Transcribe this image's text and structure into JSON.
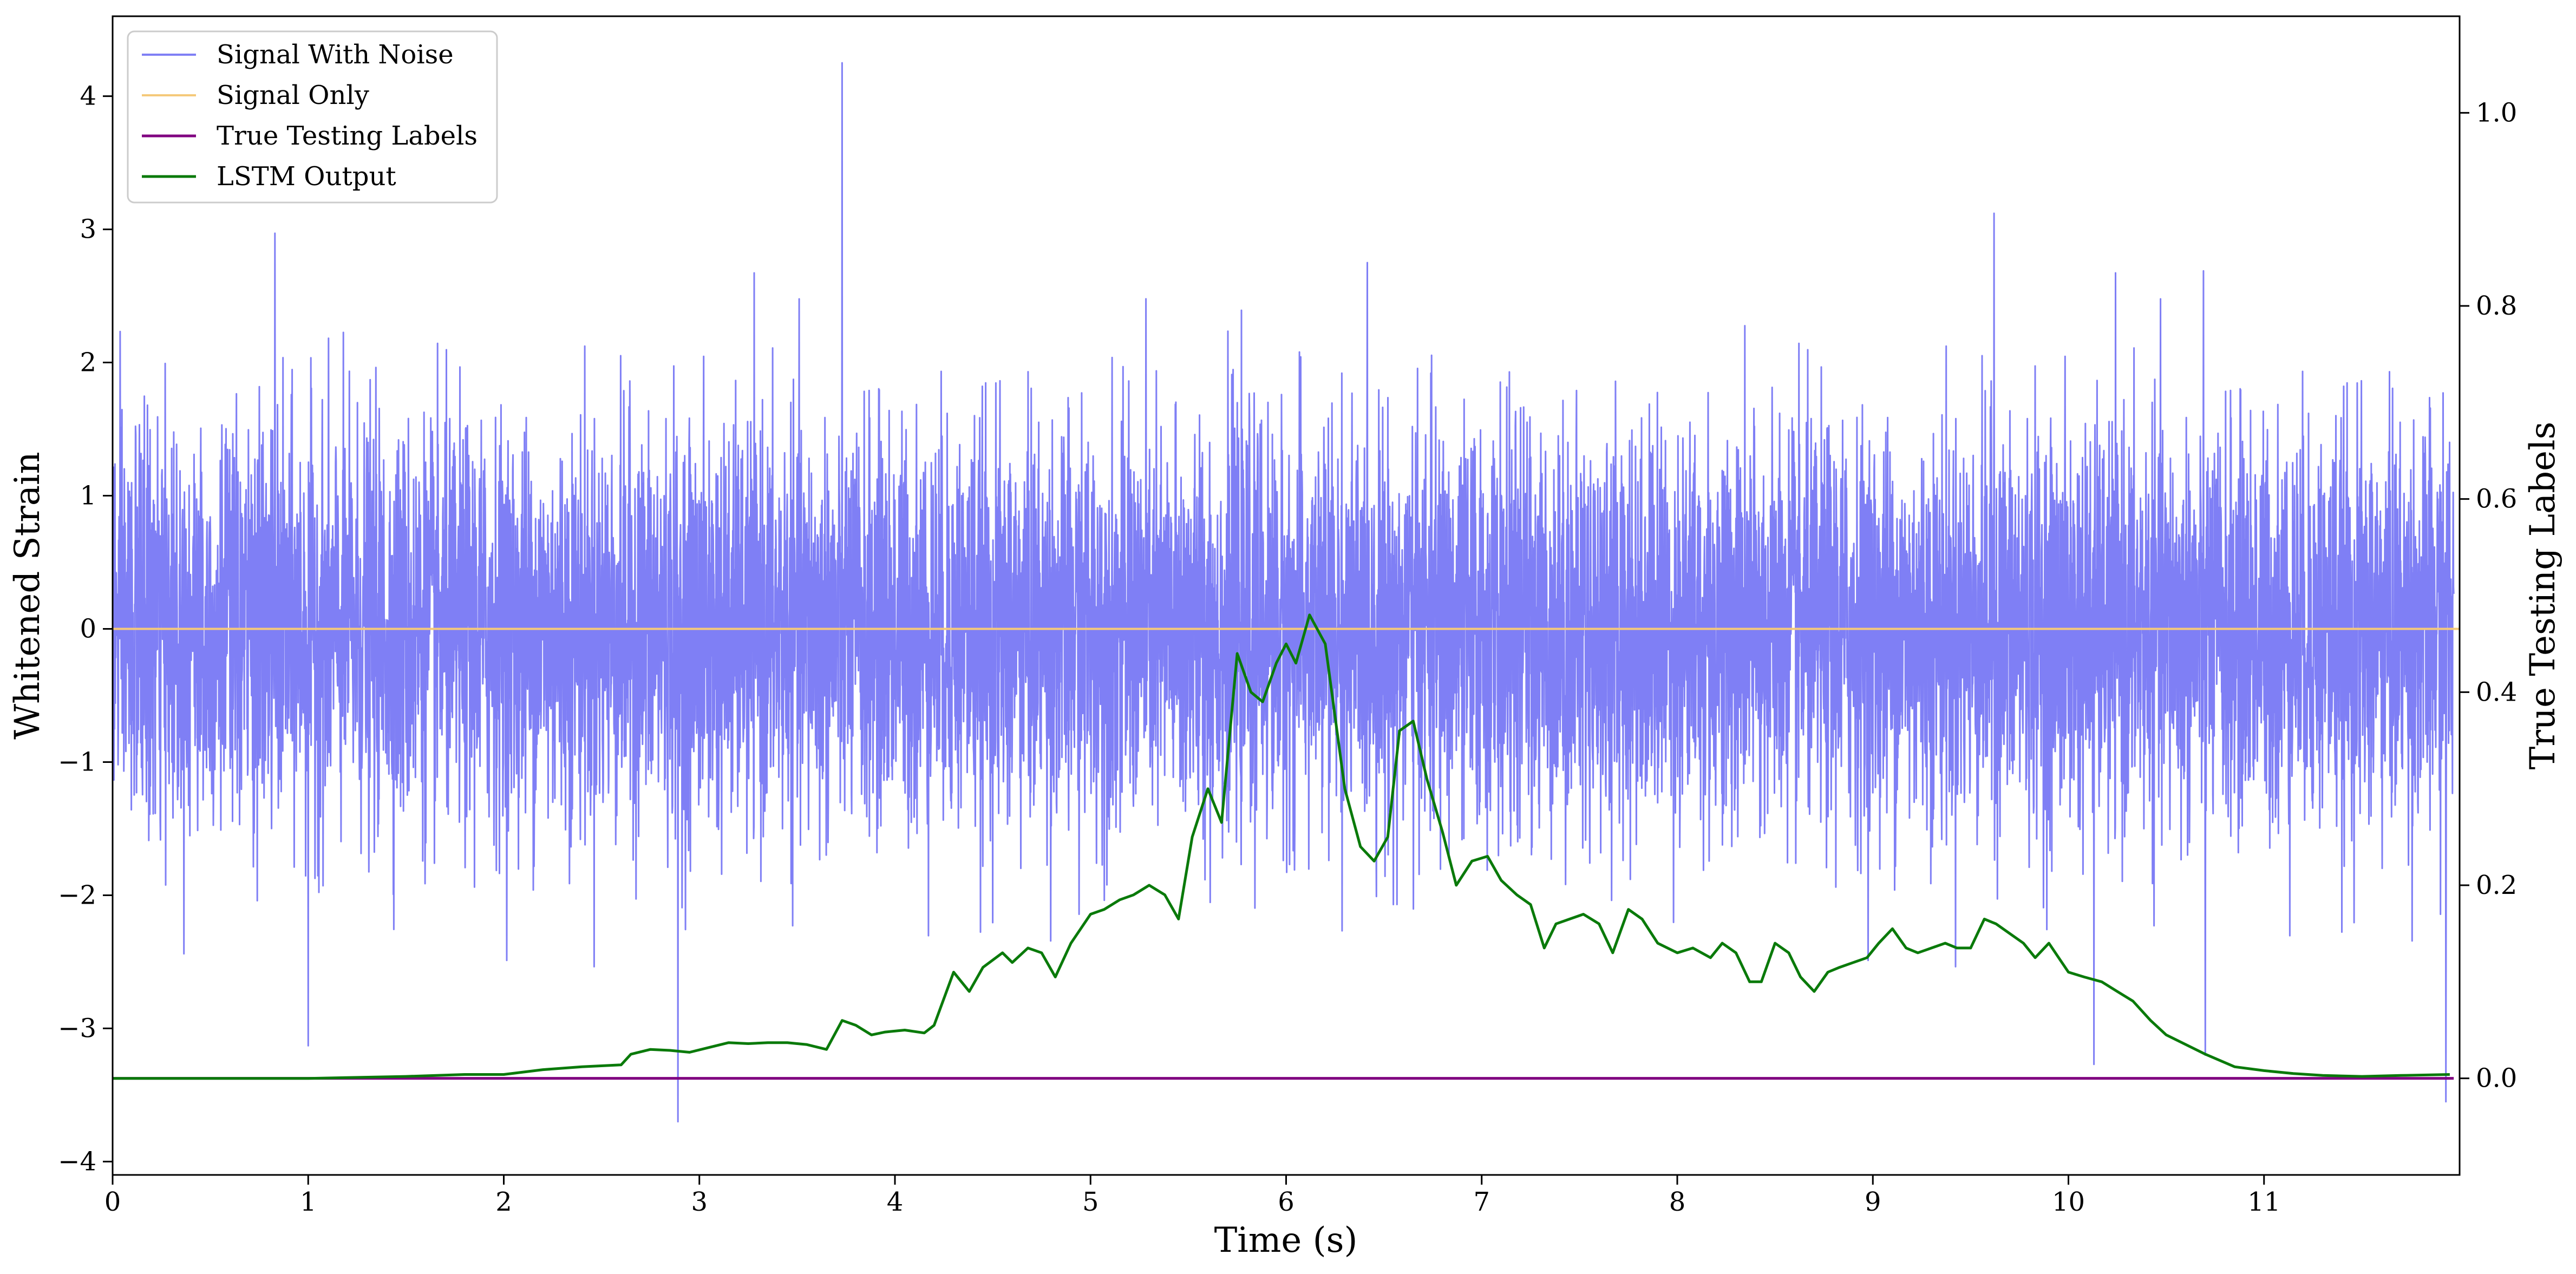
{
  "chart_data": {
    "type": "line",
    "xlabel": "Time (s)",
    "ylabel": "Whitened Strain",
    "ylabel_right": "True Testing Labels",
    "xlim": [
      0,
      12
    ],
    "ylim": [
      -4.1,
      4.6
    ],
    "ylim_right": [
      -0.1,
      1.1
    ],
    "x_ticks": [
      0,
      1,
      2,
      3,
      4,
      5,
      6,
      7,
      8,
      9,
      10,
      11
    ],
    "x_tick_labels": [
      "0",
      "1",
      "2",
      "3",
      "4",
      "5",
      "6",
      "7",
      "8",
      "9",
      "10",
      "11"
    ],
    "y_ticks": [
      -4,
      -3,
      -2,
      -1,
      0,
      1,
      2,
      3,
      4
    ],
    "y_tick_labels": [
      "−4",
      "−3",
      "−2",
      "−1",
      "0",
      "1",
      "2",
      "3",
      "4"
    ],
    "y_ticks_right": [
      0.0,
      0.2,
      0.4,
      0.6,
      0.8,
      1.0
    ],
    "y_tick_labels_right": [
      "0.0",
      "0.2",
      "0.4",
      "0.6",
      "0.8",
      "1.0"
    ],
    "grid": false,
    "legend_position": "top-left",
    "series": [
      {
        "name": "Signal With Noise",
        "axis": "left",
        "color": "#7f7ff5",
        "description_values": "dense noise, std ~0.75",
        "spikes": [
          {
            "x": 3.73,
            "y": 4.25
          },
          {
            "x": 2.89,
            "y": -3.7
          },
          {
            "x": 9.62,
            "y": 3.12
          },
          {
            "x": 0.83,
            "y": 2.97
          },
          {
            "x": 1.0,
            "y": -3.13
          },
          {
            "x": 11.93,
            "y": -3.55
          },
          {
            "x": 10.13,
            "y": -3.27
          },
          {
            "x": 10.7,
            "y": -3.2
          }
        ]
      },
      {
        "name": "Signal Only",
        "axis": "left",
        "color": "#f5c97a",
        "x": [
          0,
          12
        ],
        "y": [
          0,
          0
        ]
      },
      {
        "name": "True Testing Labels",
        "axis": "right",
        "color": "#800080",
        "x": [
          0,
          12
        ],
        "y": [
          0,
          0
        ]
      },
      {
        "name": "LSTM Output",
        "axis": "right",
        "color": "#0a7a0a",
        "x": [
          0,
          0.5,
          1.0,
          1.5,
          1.8,
          2.0,
          2.2,
          2.4,
          2.6,
          2.65,
          2.75,
          2.85,
          2.95,
          3.05,
          3.15,
          3.25,
          3.35,
          3.45,
          3.55,
          3.65,
          3.73,
          3.8,
          3.88,
          3.95,
          4.05,
          4.15,
          4.2,
          4.3,
          4.38,
          4.45,
          4.55,
          4.6,
          4.68,
          4.75,
          4.82,
          4.9,
          5.0,
          5.07,
          5.15,
          5.22,
          5.3,
          5.38,
          5.45,
          5.52,
          5.6,
          5.67,
          5.75,
          5.82,
          5.88,
          5.95,
          6.0,
          6.05,
          6.12,
          6.2,
          6.3,
          6.38,
          6.45,
          6.52,
          6.58,
          6.65,
          6.72,
          6.8,
          6.87,
          6.95,
          7.03,
          7.1,
          7.18,
          7.25,
          7.32,
          7.38,
          7.45,
          7.52,
          7.6,
          7.67,
          7.75,
          7.82,
          7.9,
          8.0,
          8.08,
          8.17,
          8.23,
          8.3,
          8.37,
          8.43,
          8.5,
          8.57,
          8.63,
          8.7,
          8.77,
          8.83,
          8.9,
          8.97,
          9.03,
          9.1,
          9.17,
          9.23,
          9.3,
          9.37,
          9.43,
          9.5,
          9.57,
          9.63,
          9.7,
          9.77,
          9.83,
          9.9,
          10.0,
          10.08,
          10.17,
          10.25,
          10.33,
          10.42,
          10.5,
          10.6,
          10.7,
          10.85,
          11.0,
          11.15,
          11.3,
          11.5,
          11.7,
          11.95
        ],
        "y": [
          0.0,
          0.0,
          0.0,
          0.002,
          0.004,
          0.004,
          0.009,
          0.012,
          0.014,
          0.025,
          0.03,
          0.029,
          0.027,
          0.032,
          0.037,
          0.036,
          0.037,
          0.037,
          0.035,
          0.03,
          0.06,
          0.055,
          0.045,
          0.048,
          0.05,
          0.047,
          0.055,
          0.11,
          0.09,
          0.115,
          0.13,
          0.12,
          0.135,
          0.13,
          0.105,
          0.14,
          0.17,
          0.175,
          0.185,
          0.19,
          0.2,
          0.19,
          0.165,
          0.25,
          0.3,
          0.265,
          0.44,
          0.4,
          0.39,
          0.43,
          0.45,
          0.43,
          0.48,
          0.45,
          0.3,
          0.24,
          0.225,
          0.25,
          0.36,
          0.37,
          0.31,
          0.255,
          0.2,
          0.225,
          0.23,
          0.205,
          0.19,
          0.18,
          0.135,
          0.16,
          0.165,
          0.17,
          0.16,
          0.13,
          0.175,
          0.165,
          0.14,
          0.13,
          0.135,
          0.125,
          0.14,
          0.13,
          0.1,
          0.1,
          0.14,
          0.13,
          0.105,
          0.09,
          0.11,
          0.115,
          0.12,
          0.125,
          0.14,
          0.155,
          0.135,
          0.13,
          0.135,
          0.14,
          0.135,
          0.135,
          0.165,
          0.16,
          0.15,
          0.14,
          0.125,
          0.14,
          0.11,
          0.105,
          0.1,
          0.09,
          0.08,
          0.06,
          0.045,
          0.035,
          0.025,
          0.012,
          0.008,
          0.005,
          0.003,
          0.002,
          0.003,
          0.004
        ]
      }
    ]
  }
}
